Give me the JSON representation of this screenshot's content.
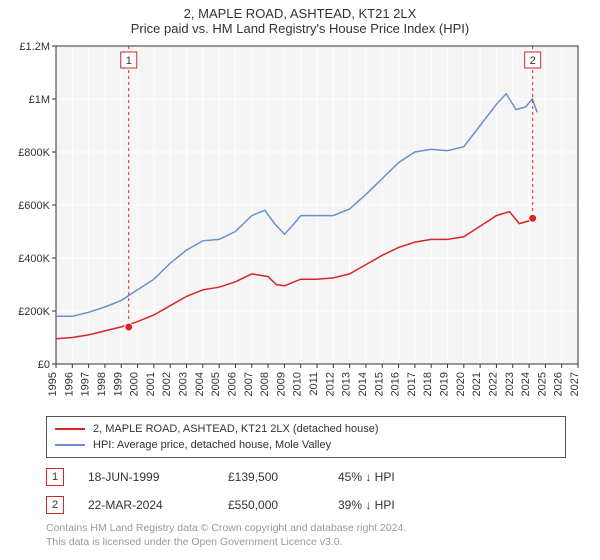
{
  "header": {
    "line1": "2, MAPLE ROAD, ASHTEAD, KT21 2LX",
    "line2": "Price paid vs. HM Land Registry's House Price Index (HPI)"
  },
  "chart": {
    "type": "line",
    "plot_bg": "#f5f5f5",
    "page_bg": "#ffffff",
    "grid_color": "#ffffff",
    "axis_color": "#333333",
    "tick_fontsize": 11,
    "x_years": [
      1995,
      1996,
      1997,
      1998,
      1999,
      2000,
      2001,
      2002,
      2003,
      2004,
      2005,
      2006,
      2007,
      2008,
      2009,
      2010,
      2011,
      2012,
      2013,
      2014,
      2015,
      2016,
      2017,
      2018,
      2019,
      2020,
      2021,
      2022,
      2023,
      2024,
      2025,
      2026,
      2027
    ],
    "y_ticks": [
      0,
      200000,
      400000,
      600000,
      800000,
      1000000,
      1200000
    ],
    "y_tick_labels": [
      "£0",
      "£200K",
      "£400K",
      "£600K",
      "£800K",
      "£1M",
      "£1.2M"
    ],
    "ylim": [
      0,
      1200000
    ],
    "xlim": [
      1995,
      2027
    ],
    "series": [
      {
        "name": "2, MAPLE ROAD, ASHTEAD, KT21 2LX (detached house)",
        "color": "#d62728",
        "line_width": 1.5,
        "values": [
          [
            1995,
            95000
          ],
          [
            1996,
            100000
          ],
          [
            1997,
            110000
          ],
          [
            1998,
            125000
          ],
          [
            1999,
            140000
          ],
          [
            2000,
            160000
          ],
          [
            2001,
            185000
          ],
          [
            2002,
            220000
          ],
          [
            2003,
            255000
          ],
          [
            2004,
            280000
          ],
          [
            2005,
            290000
          ],
          [
            2006,
            310000
          ],
          [
            2007,
            340000
          ],
          [
            2008,
            330000
          ],
          [
            2008.5,
            300000
          ],
          [
            2009,
            295000
          ],
          [
            2010,
            320000
          ],
          [
            2011,
            320000
          ],
          [
            2012,
            325000
          ],
          [
            2013,
            340000
          ],
          [
            2014,
            375000
          ],
          [
            2015,
            410000
          ],
          [
            2016,
            440000
          ],
          [
            2017,
            460000
          ],
          [
            2018,
            470000
          ],
          [
            2019,
            470000
          ],
          [
            2020,
            480000
          ],
          [
            2021,
            520000
          ],
          [
            2022,
            560000
          ],
          [
            2022.8,
            575000
          ],
          [
            2023.4,
            530000
          ],
          [
            2024,
            540000
          ],
          [
            2024.2,
            550000
          ]
        ]
      },
      {
        "name": "HPI: Average price, detached house, Mole Valley",
        "color": "#6a8fd4",
        "line_width": 1.5,
        "values": [
          [
            1995,
            180000
          ],
          [
            1996,
            180000
          ],
          [
            1997,
            195000
          ],
          [
            1998,
            215000
          ],
          [
            1999,
            240000
          ],
          [
            2000,
            280000
          ],
          [
            2001,
            320000
          ],
          [
            2002,
            380000
          ],
          [
            2003,
            430000
          ],
          [
            2004,
            465000
          ],
          [
            2005,
            470000
          ],
          [
            2006,
            500000
          ],
          [
            2007,
            560000
          ],
          [
            2007.8,
            580000
          ],
          [
            2008.4,
            530000
          ],
          [
            2009,
            490000
          ],
          [
            2009.6,
            530000
          ],
          [
            2010,
            560000
          ],
          [
            2011,
            560000
          ],
          [
            2012,
            560000
          ],
          [
            2013,
            585000
          ],
          [
            2014,
            640000
          ],
          [
            2015,
            700000
          ],
          [
            2016,
            760000
          ],
          [
            2017,
            800000
          ],
          [
            2018,
            810000
          ],
          [
            2019,
            805000
          ],
          [
            2020,
            820000
          ],
          [
            2021,
            900000
          ],
          [
            2022,
            980000
          ],
          [
            2022.6,
            1020000
          ],
          [
            2023.2,
            960000
          ],
          [
            2023.8,
            970000
          ],
          [
            2024.2,
            1000000
          ],
          [
            2024.5,
            950000
          ]
        ]
      }
    ],
    "markers": [
      {
        "label": "1",
        "x": 1999.46,
        "y": 139500,
        "color": "#d62728"
      },
      {
        "label": "2",
        "x": 2024.22,
        "y": 550000,
        "color": "#d62728"
      }
    ]
  },
  "legend": {
    "item1": "2, MAPLE ROAD, ASHTEAD, KT21 2LX (detached house)",
    "item2": "HPI: Average price, detached house, Mole Valley",
    "color1": "#d62728",
    "color2": "#6a8fd4"
  },
  "transactions": [
    {
      "marker": "1",
      "marker_color": "#d62728",
      "date": "18-JUN-1999",
      "price": "£139,500",
      "delta": "45% ↓ HPI"
    },
    {
      "marker": "2",
      "marker_color": "#d62728",
      "date": "22-MAR-2024",
      "price": "£550,000",
      "delta": "39% ↓ HPI"
    }
  ],
  "footer": {
    "line1": "Contains HM Land Registry data © Crown copyright and database right 2024.",
    "line2": "This data is licensed under the Open Government Licence v3.0."
  }
}
